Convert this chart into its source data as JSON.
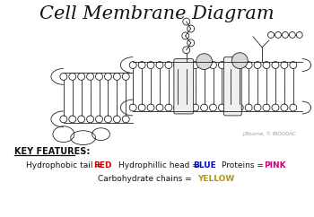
{
  "title": "Cell Membrane Diagram",
  "background_color": "#ffffff",
  "key_header": "KEY FEATURES:",
  "key_items": [
    {
      "text": "Hydrophobic tail = ",
      "bold": "RED",
      "bold_color": "#cc0000"
    },
    {
      "text": "Hydrophillic head = ",
      "bold": "BLUE",
      "bold_color": "#0000cc"
    },
    {
      "text": "Proteins = ",
      "bold": "PINK",
      "bold_color": "#cc0077"
    },
    {
      "text": "Carbohydrate chains = ",
      "bold": "YELLOW",
      "bold_color": "#bb9900"
    }
  ],
  "watermark": "J.Bourne, © BIOODAC",
  "outline_color": "#222222",
  "fill_color": "#ffffff",
  "title_fontsize": 15,
  "key_fontsize": 6.5
}
